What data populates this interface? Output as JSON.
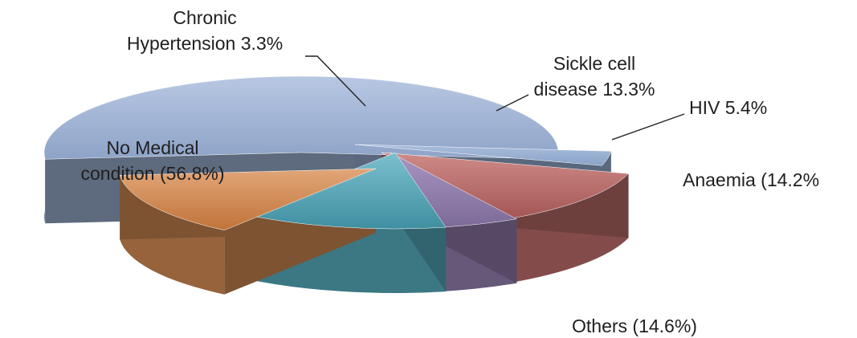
{
  "chart_data": {
    "type": "pie",
    "title": "",
    "slices": [
      {
        "key": "no_medical",
        "name": "No Medical condition",
        "value": 56.8,
        "label_lines": [
          "No Medical",
          "condition (56.8%)"
        ],
        "color": "#9db0d1"
      },
      {
        "key": "chronic_htn",
        "name": "Chronic Hypertension",
        "value": 3.3,
        "label_lines": [
          "Chronic",
          "Hypertension 3.3%"
        ],
        "color": "#95add0"
      },
      {
        "key": "sickle_cell",
        "name": "Sickle cell disease",
        "value": 13.3,
        "label_lines": [
          "Sickle cell",
          "disease 13.3%"
        ],
        "color": "#b66a68"
      },
      {
        "key": "hiv",
        "name": "HIV",
        "value": 5.4,
        "label_lines": [
          "HIV  5.4%"
        ],
        "color": "#8d7aa8"
      },
      {
        "key": "anaemia",
        "name": "Anaemia",
        "value": 14.2,
        "label_lines": [
          "Anaemia (14.2%"
        ],
        "color": "#52a7b8"
      },
      {
        "key": "others",
        "name": "Others",
        "value": 14.6,
        "label_lines": [
          "Others (14.6%)"
        ],
        "color": "#d08a53"
      }
    ],
    "style": "3d-exploded-pie",
    "legend": "none"
  }
}
